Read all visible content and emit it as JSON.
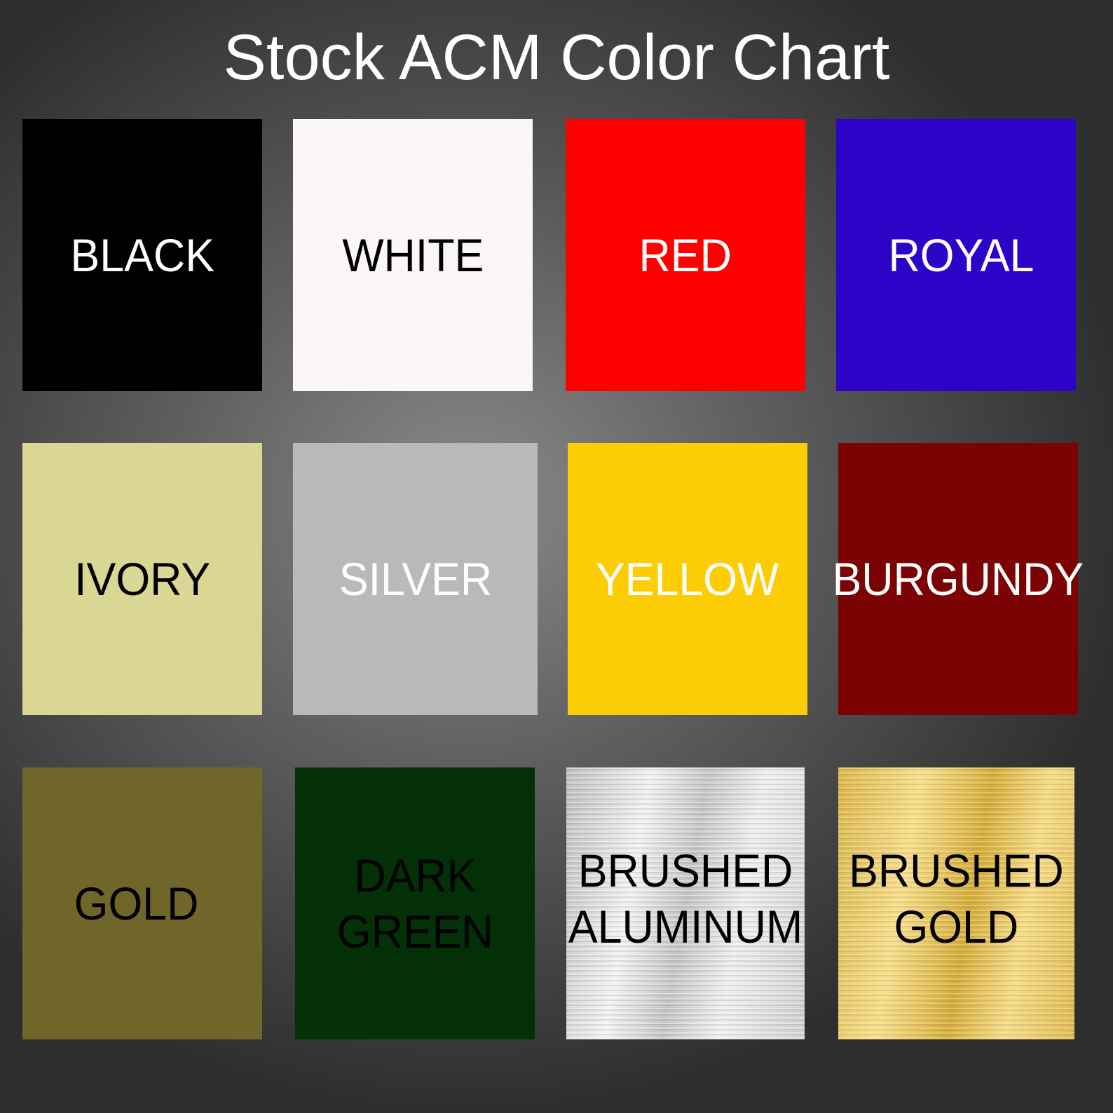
{
  "title": "Stock ACM Color Chart",
  "swatches": [
    {
      "label": "BLACK",
      "color": "#000000",
      "text_color": "#ffffff"
    },
    {
      "label": "WHITE",
      "color": "#fcf7f7",
      "text_color": "#000000"
    },
    {
      "label": "RED",
      "color": "#fe0000",
      "text_color": "#ffffff"
    },
    {
      "label": "ROYAL",
      "color": "#2d03c8",
      "text_color": "#ffffff"
    },
    {
      "label": "IVORY",
      "color": "#d9d793",
      "text_color": "#000000"
    },
    {
      "label": "SILVER",
      "color": "#b9b9b9",
      "text_color": "#ffffff"
    },
    {
      "label": "YELLOW",
      "color": "#fccd05",
      "text_color": "#ffffff"
    },
    {
      "label": "BURGUNDY",
      "color": "#7b0303",
      "text_color": "#ffffff"
    },
    {
      "label": "GOLD",
      "color": "#71662a",
      "text_color": "#000000"
    },
    {
      "label": "DARK\nGREEN",
      "color": "#033007",
      "text_color": "#000000"
    },
    {
      "label": "BRUSHED\nALUMINUM",
      "color": "#d6d6d6",
      "text_color": "#000000",
      "texture": "brushed"
    },
    {
      "label": "BRUSHED\nGOLD",
      "color": "#e6c66a",
      "text_color": "#000000",
      "texture": "brushed"
    }
  ]
}
